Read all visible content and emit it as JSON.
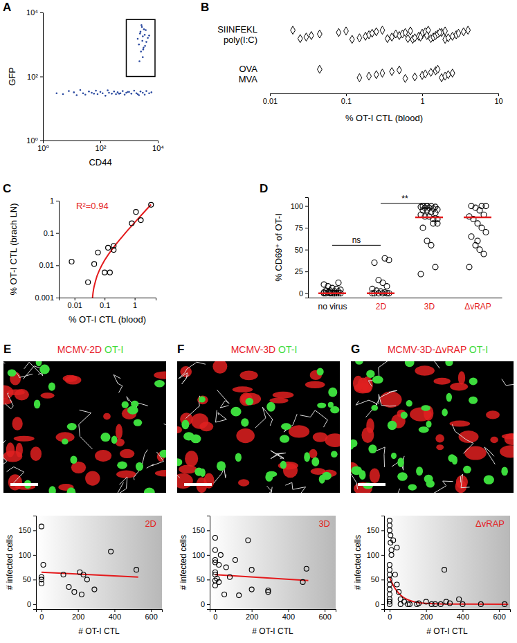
{
  "chart_data": [
    {
      "type": "scatter",
      "panel": "A",
      "x_label": "CD44",
      "y_label": "GFP",
      "log": true,
      "xlim": [
        1,
        10000
      ],
      "ylim": [
        1,
        10000
      ],
      "xticks": [
        {
          "value": 1,
          "label": "10⁰"
        },
        {
          "value": 100,
          "label": "10²"
        },
        {
          "value": 10000,
          "label": "10⁴"
        }
      ],
      "yticks": [
        {
          "value": 1,
          "label": "10⁰"
        },
        {
          "value": 100,
          "label": "10²"
        },
        {
          "value": 10000,
          "label": "10⁴"
        }
      ],
      "color": "#2b4aa0",
      "marker": "dot",
      "x": [
        3,
        5,
        8,
        12,
        15,
        20,
        25,
        30,
        40,
        50,
        60,
        70,
        80,
        100,
        120,
        150,
        180,
        200,
        250,
        300,
        350,
        400,
        500,
        600,
        700,
        800,
        1000,
        1200,
        1500,
        1800,
        2000,
        2500,
        3000,
        3500,
        4000,
        5000,
        6000,
        2200,
        900,
        450,
        2000,
        2500,
        3000,
        2800,
        3500,
        4000,
        3200,
        2200,
        2600,
        3800,
        4500,
        3000,
        2400,
        3300,
        2900,
        3600,
        2700,
        3100,
        5000,
        2300
      ],
      "y": [
        30,
        28,
        35,
        32,
        26,
        38,
        30,
        27,
        34,
        31,
        29,
        36,
        28,
        33,
        30,
        25,
        37,
        31,
        29,
        34,
        28,
        32,
        30,
        35,
        27,
        31,
        33,
        29,
        36,
        30,
        28,
        34,
        31,
        27,
        35,
        30,
        32,
        26,
        33,
        29,
        1500,
        2500,
        1800,
        3500,
        2000,
        1200,
        800,
        1000,
        600,
        2800,
        1600,
        400,
        2200,
        3000,
        1300,
        900,
        4000,
        700,
        1900,
        300
      ],
      "gate": {
        "x": [
          800,
          8000
        ],
        "y": [
          100,
          6000
        ]
      }
    },
    {
      "type": "strip",
      "panel": "B",
      "x_label": "% OT-I CTL (blood)",
      "log": "x",
      "xlim": [
        0.01,
        10
      ],
      "xticks": [
        0.01,
        0.1,
        1,
        10
      ],
      "marker": "diamond",
      "groups": [
        {
          "label": "SIINFEKL poly(I:C)",
          "values": [
            0.02,
            0.025,
            0.03,
            0.035,
            0.045,
            0.08,
            0.1,
            0.12,
            0.15,
            0.18,
            0.2,
            0.22,
            0.25,
            0.3,
            0.35,
            0.4,
            0.5,
            0.55,
            0.6,
            0.7,
            0.75,
            0.8,
            0.9,
            1,
            1,
            1.1,
            1.2,
            1.3,
            1.4,
            1.5,
            1.6,
            1.8,
            2,
            2,
            2.2,
            2.5,
            2.8,
            3,
            3.5,
            4,
            0.65,
            0.95,
            1.15,
            0.45,
            1.7
          ]
        },
        {
          "label": "OVA MVA",
          "values": [
            0.045,
            0.15,
            0.2,
            0.25,
            0.3,
            0.4,
            0.5,
            0.6,
            0.8,
            1,
            1.1,
            1.3,
            1.5,
            1.6,
            1.8,
            2,
            2.2,
            2.5
          ]
        }
      ]
    },
    {
      "type": "scatter",
      "panel": "C",
      "x_label": "% OT-I CTL (blood)",
      "y_label": "% OT-I CTL (brach LN)",
      "log": true,
      "xlim": [
        0.003,
        5
      ],
      "ylim": [
        0.001,
        1
      ],
      "xticks": [
        0.01,
        0.1,
        1
      ],
      "yticks": [
        0.001,
        0.01,
        0.1,
        1
      ],
      "marker": "circle",
      "x": [
        0.008,
        0.028,
        0.045,
        0.06,
        0.1,
        0.15,
        0.13,
        0.2,
        0.2,
        0.8,
        1.1,
        1.6,
        3.5
      ],
      "y": [
        0.013,
        0.003,
        0.011,
        0.025,
        0.006,
        0.006,
        0.035,
        0.04,
        0.03,
        0.2,
        0.45,
        0.25,
        0.75
      ],
      "fit": {
        "x": [
          0.037,
          0.04,
          0.05,
          0.07,
          0.1,
          0.2,
          0.5,
          1,
          2,
          3.5
        ],
        "y": [
          0.00044,
          0.0011,
          0.0033,
          0.0077,
          0.0143,
          0.0363,
          0.1023,
          0.2123,
          0.4323,
          0.7623
        ],
        "color": "#e41a1c",
        "annotation": "R²=0.94"
      }
    },
    {
      "type": "dot",
      "panel": "D",
      "y_label": "% CD69⁺ of OT-I",
      "ylim": [
        -5,
        110
      ],
      "yticks": [
        0,
        25,
        50,
        75,
        100
      ],
      "categories": [
        "no virus",
        "2D",
        "3D",
        "ΔvRAP"
      ],
      "label_colors": [
        "#000000",
        "#e41a1c",
        "#e41a1c",
        "#e41a1c"
      ],
      "groups": [
        [
          0,
          0,
          0,
          0,
          0,
          0,
          0,
          0,
          1,
          1,
          2,
          2,
          3,
          3,
          4,
          5,
          6,
          8,
          10,
          12,
          0,
          1
        ],
        [
          0,
          0,
          0,
          0,
          0,
          0,
          1,
          2,
          3,
          5,
          8,
          12,
          15,
          35,
          38,
          40
        ],
        [
          22,
          30,
          55,
          60,
          75,
          80,
          85,
          88,
          88,
          90,
          92,
          93,
          95,
          95,
          96,
          97,
          98,
          98,
          99,
          99,
          100,
          100,
          100,
          85,
          80
        ],
        [
          30,
          45,
          50,
          55,
          65,
          70,
          75,
          80,
          85,
          88,
          90,
          95,
          98,
          100,
          100,
          100,
          60
        ]
      ],
      "medians": [
        0,
        0,
        87,
        87
      ],
      "median_color": "#e41a1c",
      "annotations": [
        {
          "text": "ns",
          "between": [
            0,
            1
          ],
          "y": 55
        },
        {
          "text": "**",
          "between": [
            1,
            2
          ],
          "y": 103
        }
      ]
    },
    {
      "type": "scatter",
      "panel": "E",
      "image_title": [
        {
          "text": "MCMV-2D",
          "color": "#e8202a"
        },
        {
          "text": "OT-I",
          "color": "#3ddc3d"
        }
      ],
      "annotation": "2D",
      "x_label": "# OT-I CTL",
      "y_label": "# infected cells",
      "xlim": [
        -30,
        660
      ],
      "ylim": [
        -10,
        180
      ],
      "xticks": [
        0,
        200,
        400,
        600
      ],
      "yticks": [
        0,
        50,
        100,
        150
      ],
      "marker": "circle",
      "x": [
        0,
        0,
        0,
        10,
        0,
        120,
        150,
        180,
        220,
        230,
        250,
        290,
        380,
        520,
        210
      ],
      "y": [
        158,
        50,
        55,
        80,
        42,
        60,
        35,
        25,
        20,
        60,
        50,
        30,
        107,
        70,
        65
      ],
      "fit": {
        "x": [
          0,
          530
        ],
        "y": [
          65,
          55
        ],
        "color": "#e41a1c"
      }
    },
    {
      "type": "scatter",
      "panel": "F",
      "image_title": [
        {
          "text": "MCMV-3D",
          "color": "#e8202a"
        },
        {
          "text": "OT-I",
          "color": "#3ddc3d"
        }
      ],
      "annotation": "3D",
      "x_label": "# OT-I CTL",
      "y_label": "# infected cells",
      "xlim": [
        -30,
        660
      ],
      "ylim": [
        -10,
        180
      ],
      "xticks": [
        0,
        200,
        400,
        600
      ],
      "yticks": [
        0,
        50,
        100,
        150
      ],
      "marker": "circle",
      "x": [
        0,
        0,
        0,
        0,
        0,
        0,
        0,
        0,
        20,
        30,
        50,
        60,
        80,
        110,
        130,
        180,
        200,
        200,
        290,
        290,
        480,
        500,
        10,
        20
      ],
      "y": [
        38,
        48,
        60,
        65,
        85,
        90,
        110,
        135,
        80,
        100,
        20,
        75,
        55,
        90,
        18,
        130,
        30,
        70,
        25,
        28,
        45,
        72,
        52,
        45
      ],
      "fit": {
        "x": [
          0,
          510
        ],
        "y": [
          60,
          48
        ],
        "color": "#e41a1c"
      }
    },
    {
      "type": "scatter",
      "panel": "G",
      "image_title": [
        {
          "text": "MCMV-3D-ΔvRAP",
          "color": "#e8202a"
        },
        {
          "text": "OT-I",
          "color": "#3ddc3d"
        }
      ],
      "annotation": "ΔvRAP",
      "x_label": "# OT-I CTL",
      "y_label": "# infected cells",
      "xlim": [
        -30,
        660
      ],
      "ylim": [
        -10,
        180
      ],
      "xticks": [
        0,
        200,
        400,
        600
      ],
      "yticks": [
        0,
        50,
        100,
        150
      ],
      "marker": "circle",
      "x": [
        0,
        0,
        0,
        5,
        5,
        10,
        10,
        0,
        0,
        0,
        0,
        0,
        0,
        0,
        0,
        0,
        0,
        20,
        40,
        40,
        50,
        60,
        80,
        100,
        110,
        150,
        200,
        230,
        250,
        300,
        310,
        330,
        380,
        400,
        500,
        630,
        30,
        60,
        160,
        280
      ],
      "y": [
        170,
        160,
        150,
        140,
        125,
        110,
        100,
        80,
        70,
        60,
        50,
        40,
        30,
        20,
        10,
        5,
        0,
        130,
        115,
        40,
        25,
        10,
        5,
        0,
        0,
        0,
        5,
        0,
        0,
        70,
        5,
        2,
        10,
        0,
        0,
        0,
        60,
        0,
        2,
        0
      ],
      "fit": {
        "x": [
          0,
          20,
          40,
          60,
          80,
          100,
          150,
          200,
          300,
          400,
          650
        ],
        "y": [
          55,
          38.3,
          26.7,
          18.5,
          12.9,
          9.0,
          3.6,
          1.45,
          0.23,
          0.04,
          0
        ],
        "color": "#e41a1c"
      }
    }
  ]
}
